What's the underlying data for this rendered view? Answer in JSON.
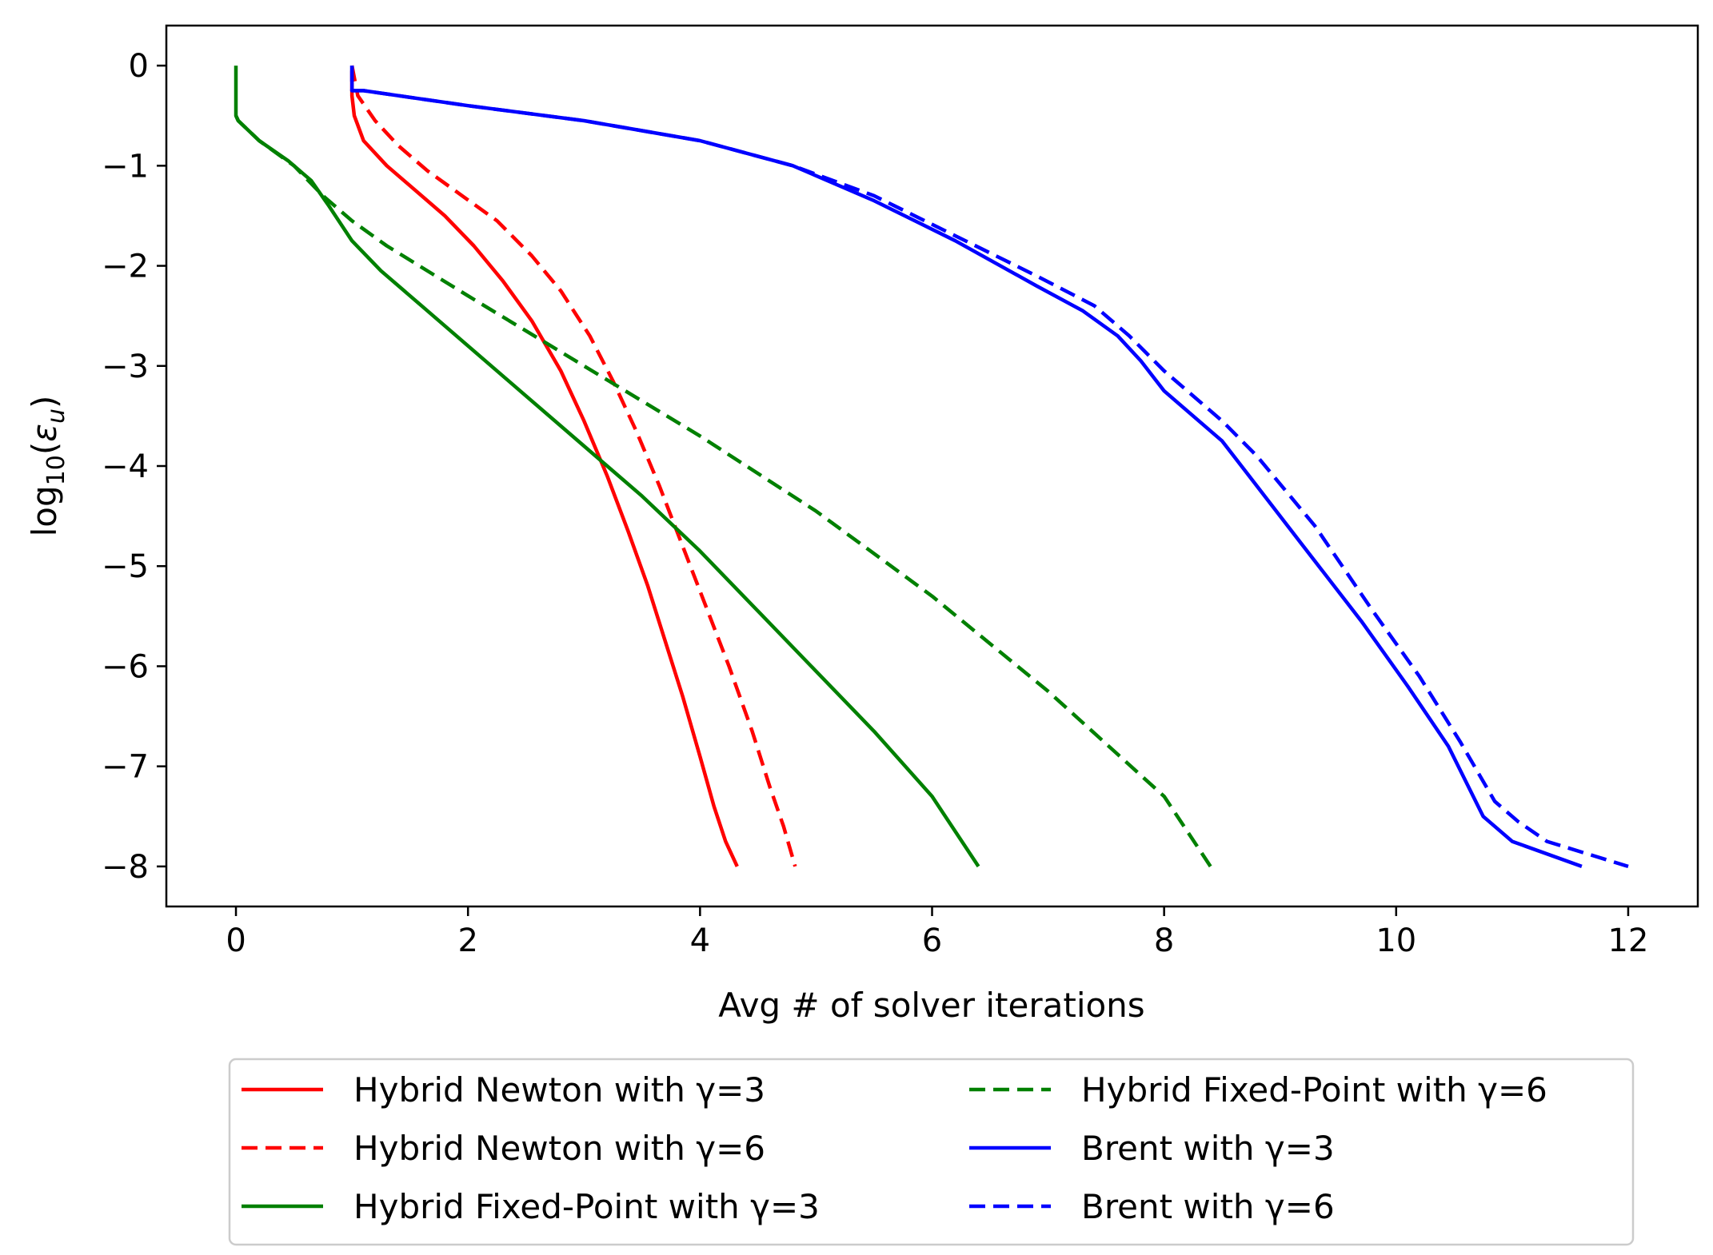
{
  "chart_data": {
    "type": "line",
    "title": "",
    "xlabel": "Avg # of solver iterations",
    "ylabel": "log10(εu)",
    "ylabel_parts": {
      "base": "log",
      "sub": "10",
      "open": "(",
      "symbol": "ε",
      "symbol_sub": "u",
      "close": ")"
    },
    "xlim": [
      -0.6,
      12.6
    ],
    "ylim": [
      -8.4,
      0.4
    ],
    "xticks": [
      0,
      2,
      4,
      6,
      8,
      10,
      12
    ],
    "xtick_labels": [
      "0",
      "2",
      "4",
      "6",
      "8",
      "10",
      "12"
    ],
    "yticks": [
      0,
      -1,
      -2,
      -3,
      -4,
      -5,
      -6,
      -7,
      -8
    ],
    "ytick_labels": [
      "0",
      "−1",
      "−2",
      "−3",
      "−4",
      "−5",
      "−6",
      "−7",
      "−8"
    ],
    "grid": false,
    "legend_position": "bottom-center, below plot, 2 columns",
    "series": [
      {
        "name": "Hybrid Newton with γ=3",
        "color": "#ff0000",
        "dash": "solid",
        "x": [
          1.0,
          1.0,
          1.02,
          1.1,
          1.3,
          1.55,
          1.8,
          2.05,
          2.3,
          2.55,
          2.8,
          3.0,
          3.2,
          3.38,
          3.55,
          3.7,
          3.85,
          4.0,
          4.12,
          4.22,
          4.32
        ],
        "y": [
          -0.05,
          -0.3,
          -0.5,
          -0.75,
          -1.0,
          -1.25,
          -1.5,
          -1.8,
          -2.15,
          -2.55,
          -3.05,
          -3.55,
          -4.1,
          -4.65,
          -5.2,
          -5.75,
          -6.3,
          -6.9,
          -7.4,
          -7.75,
          -8.0
        ]
      },
      {
        "name": "Hybrid Newton with γ=6",
        "color": "#ff0000",
        "dash": "dashed",
        "x": [
          1.0,
          1.05,
          1.2,
          1.4,
          1.65,
          1.95,
          2.25,
          2.55,
          2.8,
          3.05,
          3.25,
          3.45,
          3.65,
          3.85,
          4.05,
          4.25,
          4.45,
          4.6,
          4.72,
          4.82
        ],
        "y": [
          0.0,
          -0.3,
          -0.55,
          -0.8,
          -1.05,
          -1.3,
          -1.55,
          -1.9,
          -2.25,
          -2.7,
          -3.15,
          -3.65,
          -4.2,
          -4.8,
          -5.4,
          -6.0,
          -6.65,
          -7.2,
          -7.6,
          -8.0
        ]
      },
      {
        "name": "Hybrid Fixed-Point with γ=3",
        "color": "#008000",
        "dash": "solid",
        "x": [
          0.0,
          0.0,
          0.0,
          0.02,
          0.2,
          0.45,
          0.65,
          0.8,
          1.0,
          1.25,
          1.6,
          2.0,
          2.5,
          3.0,
          3.5,
          4.0,
          4.5,
          5.0,
          5.5,
          6.0,
          6.4
        ],
        "y": [
          0.0,
          -0.25,
          -0.5,
          -0.55,
          -0.75,
          -0.95,
          -1.15,
          -1.4,
          -1.75,
          -2.05,
          -2.4,
          -2.8,
          -3.3,
          -3.8,
          -4.3,
          -4.85,
          -5.45,
          -6.05,
          -6.65,
          -7.3,
          -8.0
        ]
      },
      {
        "name": "Hybrid Fixed-Point with γ=6",
        "color": "#008000",
        "dash": "dashed",
        "x": [
          0.0,
          0.02,
          0.2,
          0.5,
          0.75,
          1.0,
          1.3,
          2.0,
          3.0,
          4.0,
          5.0,
          6.0,
          7.0,
          8.0,
          8.4
        ],
        "y": [
          -0.5,
          -0.55,
          -0.75,
          -1.0,
          -1.3,
          -1.55,
          -1.8,
          -2.3,
          -3.0,
          -3.7,
          -4.45,
          -5.3,
          -6.25,
          -7.3,
          -8.0
        ]
      },
      {
        "name": "Brent with γ=3",
        "color": "#0000ff",
        "dash": "solid",
        "x": [
          1.0,
          1.0,
          1.1,
          2.0,
          3.0,
          4.0,
          4.8,
          5.5,
          6.2,
          6.9,
          7.3,
          7.6,
          7.8,
          8.0,
          8.5,
          8.7,
          9.2,
          9.7,
          10.1,
          10.45,
          10.75,
          11.0,
          11.6
        ],
        "y": [
          0.0,
          -0.25,
          -0.25,
          -0.4,
          -0.55,
          -0.75,
          -1.0,
          -1.35,
          -1.75,
          -2.2,
          -2.45,
          -2.7,
          -2.95,
          -3.25,
          -3.75,
          -4.05,
          -4.8,
          -5.55,
          -6.2,
          -6.8,
          -7.5,
          -7.75,
          -8.0
        ]
      },
      {
        "name": "Brent with γ=6",
        "color": "#0000ff",
        "dash": "dashed",
        "x": [
          1.0,
          1.0,
          1.1,
          2.0,
          3.0,
          4.0,
          4.8,
          5.5,
          6.2,
          6.9,
          7.4,
          7.7,
          8.0,
          8.5,
          8.8,
          9.3,
          9.8,
          10.2,
          10.55,
          10.85,
          11.05,
          11.3,
          12.0
        ],
        "y": [
          0.0,
          -0.25,
          -0.25,
          -0.4,
          -0.55,
          -0.75,
          -1.0,
          -1.3,
          -1.7,
          -2.1,
          -2.4,
          -2.7,
          -3.05,
          -3.55,
          -3.9,
          -4.6,
          -5.45,
          -6.1,
          -6.75,
          -7.35,
          -7.55,
          -7.75,
          -8.0
        ]
      }
    ]
  }
}
